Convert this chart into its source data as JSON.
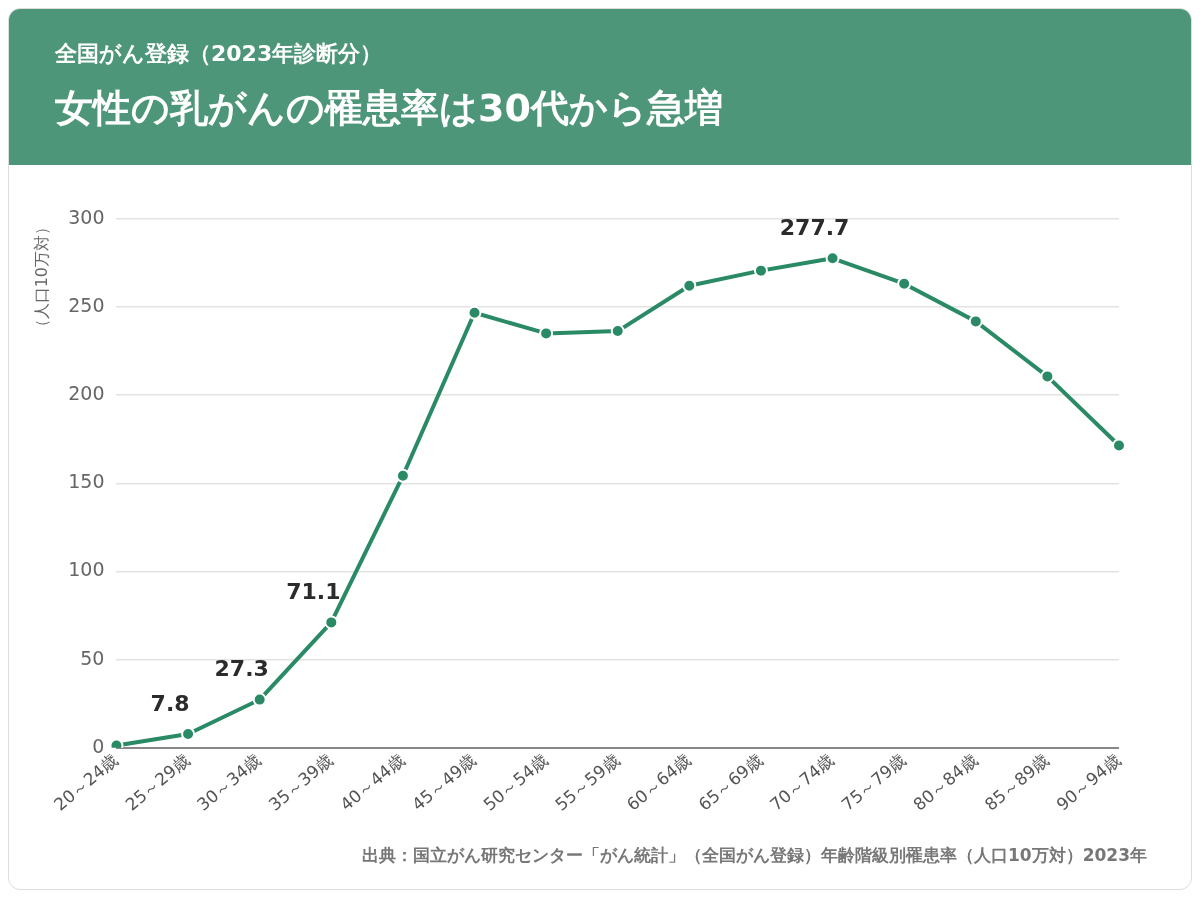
{
  "chart_data": {
    "type": "line",
    "subtitle": "全国がん登録（2023年診断分）",
    "title": "女性の乳がんの罹患率は30代から急増",
    "ylabel": "（人口10万対）",
    "categories": [
      "20～24歳",
      "25～29歳",
      "30～34歳",
      "35～39歳",
      "40～44歳",
      "45～49歳",
      "50～54歳",
      "55～59歳",
      "60～64歳",
      "65～69歳",
      "70～74歳",
      "75～79歳",
      "80～84歳",
      "85～89歳",
      "90～94歳"
    ],
    "series": [
      {
        "color": "#2a8a66",
        "values": [
          1.2,
          7.8,
          27.3,
          71.1,
          154.3,
          246.8,
          235.1,
          236.4,
          262.1,
          270.7,
          277.7,
          263.3,
          241.9,
          210.7,
          171.5
        ],
        "value_labels": [
          null,
          "7.8",
          "27.3",
          "71.1",
          null,
          null,
          null,
          null,
          null,
          null,
          "277.7",
          null,
          null,
          null,
          null
        ]
      }
    ],
    "ylim": [
      0,
      300
    ],
    "yticks": [
      0,
      50,
      100,
      150,
      200,
      250,
      300
    ],
    "grid": "y",
    "marker": "circle",
    "line_style": "solid",
    "legend": false,
    "annotations": [
      "出典：国立がん研究センター「がん統計」（全国がん登録）年齢階級別罹患率（人口10万対）2023年"
    ]
  }
}
